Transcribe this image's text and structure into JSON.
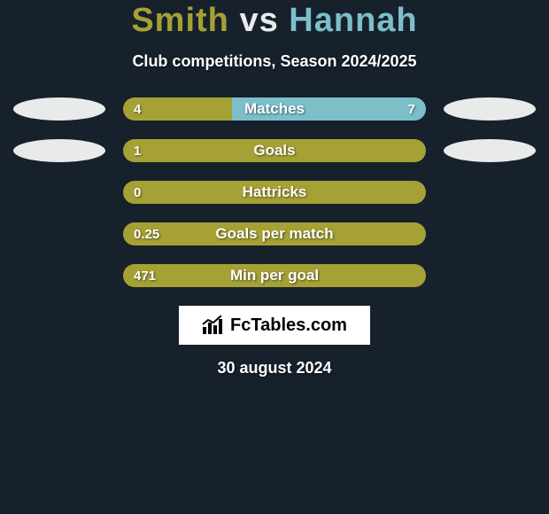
{
  "title_parts": {
    "p1": "Smith",
    "vs": "vs",
    "p2": "Hannah"
  },
  "title_colors": {
    "p1": "#a6a134",
    "vs": "#e9eaea",
    "p2": "#7cbfc9"
  },
  "subtitle": "Club competitions, Season 2024/2025",
  "background_color": "#16212c",
  "ellipse_color": "#e9eaea",
  "bar": {
    "track_width": 342,
    "track_height": 26,
    "left_color": "#a6a134",
    "right_color": "#7cbfc9",
    "track_bg": "#2a3540"
  },
  "stats": [
    {
      "label": "Matches",
      "left_val": "4",
      "right_val": "7",
      "left_pct": 36,
      "right_pct": 64,
      "show_left_ellipse": true,
      "show_right_ellipse": true
    },
    {
      "label": "Goals",
      "left_val": "1",
      "right_val": "",
      "left_pct": 100,
      "right_pct": 0,
      "show_left_ellipse": true,
      "show_right_ellipse": true
    },
    {
      "label": "Hattricks",
      "left_val": "0",
      "right_val": "",
      "left_pct": 100,
      "right_pct": 0,
      "show_left_ellipse": false,
      "show_right_ellipse": false
    },
    {
      "label": "Goals per match",
      "left_val": "0.25",
      "right_val": "",
      "left_pct": 100,
      "right_pct": 0,
      "show_left_ellipse": false,
      "show_right_ellipse": false
    },
    {
      "label": "Min per goal",
      "left_val": "471",
      "right_val": "",
      "left_pct": 100,
      "right_pct": 0,
      "show_left_ellipse": false,
      "show_right_ellipse": false
    }
  ],
  "logo": {
    "brand": "FcTables.com",
    "icon_name": "bar-chart-icon",
    "box_bg": "#ffffff",
    "text_color": "#000000"
  },
  "date_text": "30 august 2024"
}
